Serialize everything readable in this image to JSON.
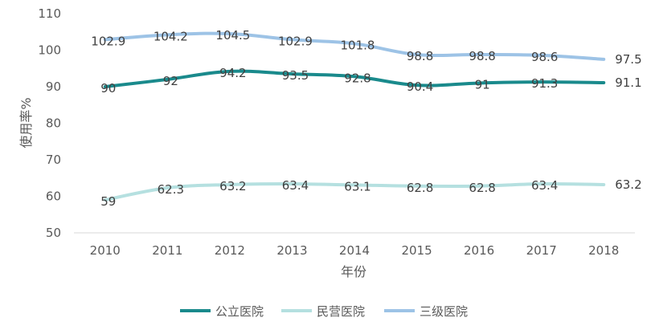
{
  "chart_data": {
    "type": "line",
    "title": "",
    "xlabel": "年份",
    "ylabel": "使用率%",
    "ylim": [
      50,
      110
    ],
    "yticks": [
      "50",
      "60",
      "70",
      "80",
      "90",
      "100",
      "110"
    ],
    "categories": [
      "2010",
      "2011",
      "2012",
      "2013",
      "2014",
      "2015",
      "2016",
      "2017",
      "2018"
    ],
    "grid": "horizontal baseline only",
    "legend_position": "bottom",
    "series": [
      {
        "name": "公立医院",
        "color": "#1a8a8c",
        "values": [
          90,
          92,
          94.2,
          93.5,
          92.8,
          90.4,
          91,
          91.3,
          91.1
        ],
        "labels": [
          "90",
          "92",
          "94.2",
          "93.5",
          "92.8",
          "90.4",
          "91",
          "91.3",
          "91.1"
        ]
      },
      {
        "name": "民营医院",
        "color": "#b5e0e0",
        "values": [
          59,
          62.3,
          63.2,
          63.4,
          63.1,
          62.8,
          62.8,
          63.4,
          63.2
        ],
        "labels": [
          "59",
          "62.3",
          "63.2",
          "63.4",
          "63.1",
          "62.8",
          "62.8",
          "63.4",
          "63.2"
        ]
      },
      {
        "name": "三级医院",
        "color": "#9dc3e6",
        "values": [
          102.9,
          104.2,
          104.5,
          102.9,
          101.8,
          98.8,
          98.8,
          98.6,
          97.5
        ],
        "labels": [
          "102.9",
          "104.2",
          "104.5",
          "102.9",
          "101.8",
          "98.8",
          "98.8",
          "98.6",
          "97.5"
        ]
      }
    ]
  }
}
